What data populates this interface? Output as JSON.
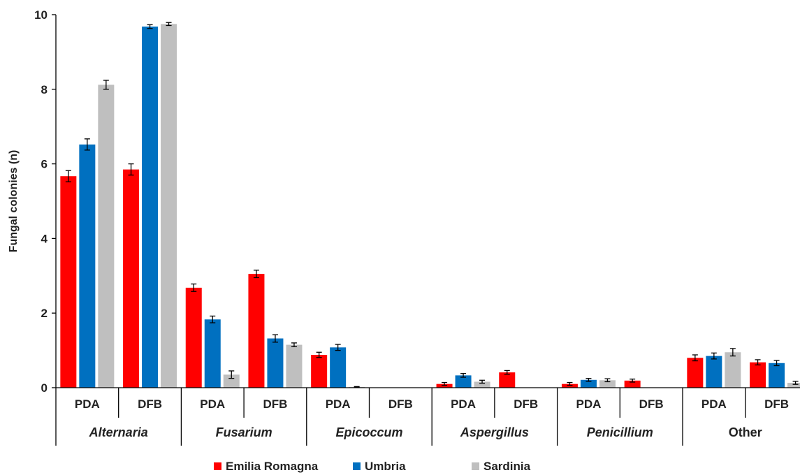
{
  "chart_data": {
    "type": "bar",
    "ylabel": "Fungal colonies (n)",
    "ylim": [
      0,
      10
    ],
    "yticks": [
      "0",
      "2",
      "4",
      "6",
      "8",
      "10"
    ],
    "groups": [
      {
        "label": "Alternaria",
        "italic": true,
        "subcategories": [
          "PDA",
          "DFB"
        ]
      },
      {
        "label": "Fusarium",
        "italic": true,
        "subcategories": [
          "PDA",
          "DFB"
        ]
      },
      {
        "label": "Epicoccum",
        "italic": true,
        "subcategories": [
          "PDA",
          "DFB"
        ]
      },
      {
        "label": "Aspergillus",
        "italic": true,
        "subcategories": [
          "PDA",
          "DFB"
        ]
      },
      {
        "label": "Penicillium",
        "italic": true,
        "subcategories": [
          "PDA",
          "DFB"
        ]
      },
      {
        "label": "Other",
        "italic": false,
        "subcategories": [
          "PDA",
          "DFB"
        ]
      }
    ],
    "series": [
      {
        "name": "Emilia Romagna",
        "color": "#ff0000",
        "values": [
          5.67,
          5.85,
          2.68,
          3.05,
          0.88,
          null,
          0.1,
          0.41,
          0.1,
          0.19,
          0.8,
          0.68
        ],
        "errors": [
          0.15,
          0.15,
          0.1,
          0.1,
          0.07,
          null,
          0.04,
          0.05,
          0.04,
          0.04,
          0.08,
          0.07
        ]
      },
      {
        "name": "Umbria",
        "color": "#0070c0",
        "values": [
          6.52,
          9.68,
          1.83,
          1.32,
          1.08,
          null,
          0.33,
          null,
          0.21,
          null,
          0.85,
          0.66
        ],
        "errors": [
          0.15,
          0.05,
          0.09,
          0.1,
          0.08,
          null,
          0.05,
          null,
          0.04,
          null,
          0.08,
          0.07
        ]
      },
      {
        "name": "Sardinia",
        "color": "#bfbfbf",
        "values": [
          8.12,
          9.75,
          0.35,
          1.15,
          0.02,
          null,
          0.16,
          null,
          0.2,
          null,
          0.95,
          0.13
        ],
        "errors": [
          0.12,
          0.04,
          0.1,
          0.05,
          0.01,
          null,
          0.04,
          null,
          0.04,
          null,
          0.1,
          0.04
        ]
      }
    ],
    "legend_position": "bottom",
    "grid": false
  }
}
